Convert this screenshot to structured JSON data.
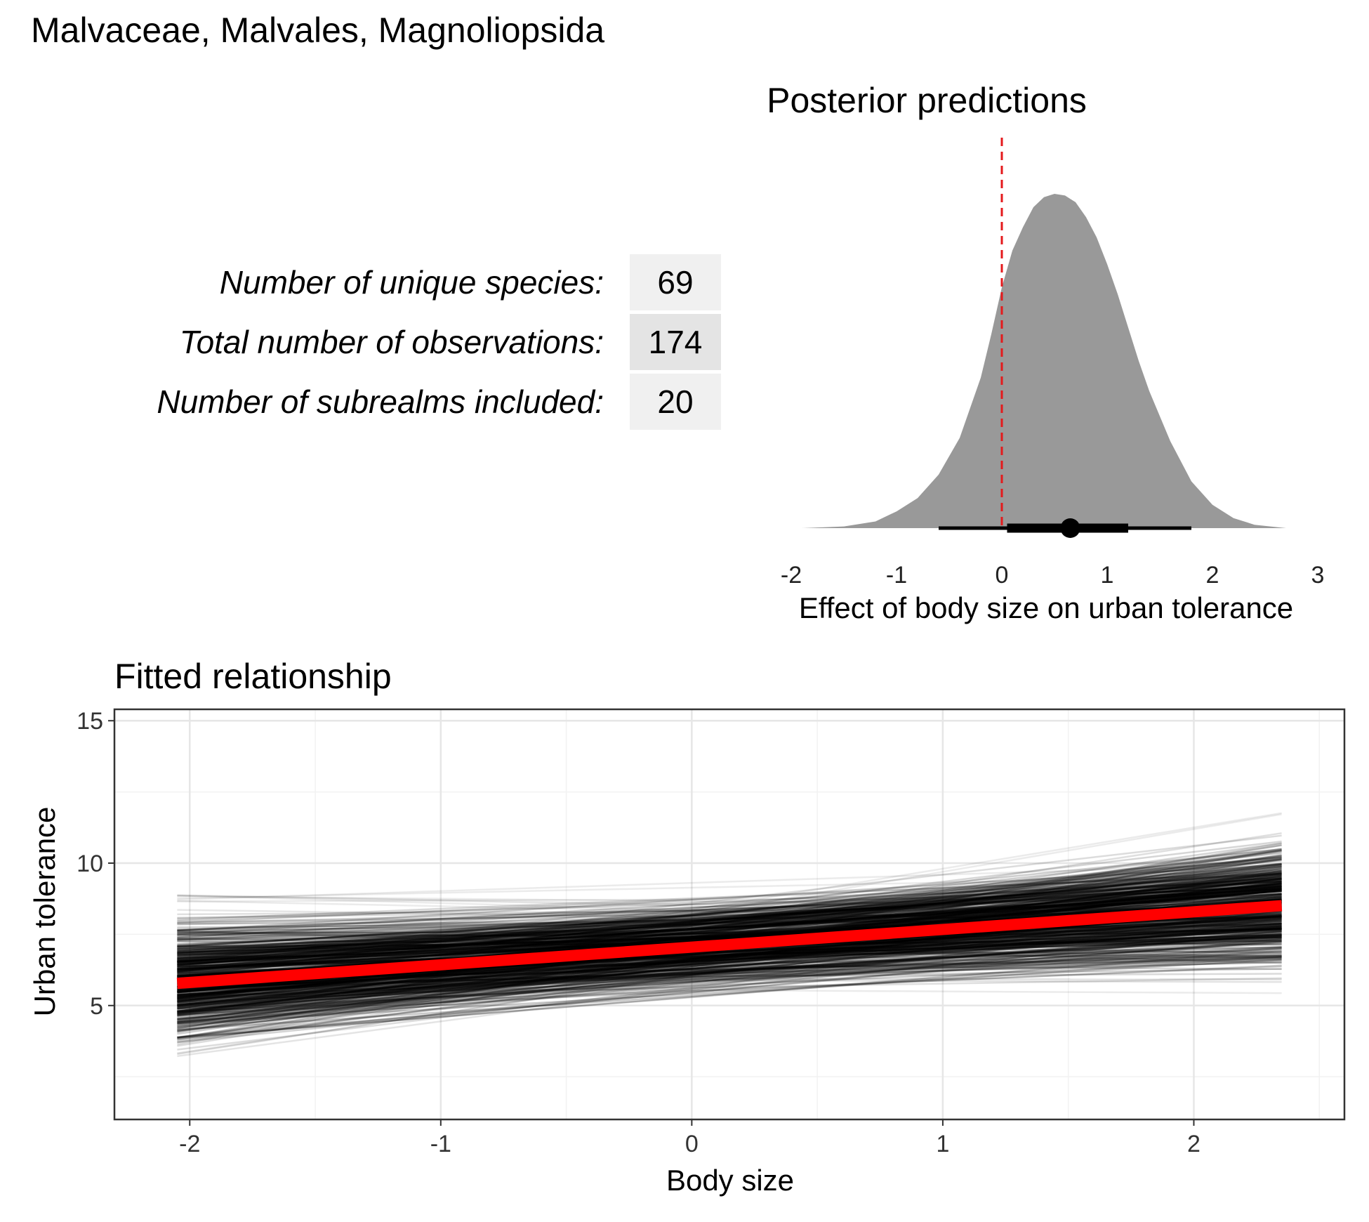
{
  "page": {
    "title": "Malvaceae, Malvales, Magnoliopsida"
  },
  "summary_table": {
    "rows": [
      {
        "label": "Number of unique species:",
        "value": "69"
      },
      {
        "label": "Total number of observations:",
        "value": "174"
      },
      {
        "label": "Number of subrealms included:",
        "value": "20"
      }
    ],
    "cell_colors": [
      "#f0f0f0",
      "#e4e4e4",
      "#f0f0f0"
    ]
  },
  "chart_data": [
    {
      "type": "area",
      "title": "Posterior predictions",
      "xlabel": "Effect of body size on urban tolerance",
      "ylabel": "",
      "xlim": [
        -2,
        3
      ],
      "xticks": [
        "-2",
        "-1",
        "0",
        "1",
        "2",
        "3"
      ],
      "grid": false,
      "density_color": "#999999",
      "reference_line": {
        "x": 0,
        "color": "#e41a1c",
        "style": "dashed"
      },
      "density": {
        "x": [
          -1.9,
          -1.5,
          -1.2,
          -1.0,
          -0.8,
          -0.6,
          -0.4,
          -0.2,
          -0.1,
          0.0,
          0.1,
          0.2,
          0.3,
          0.4,
          0.5,
          0.6,
          0.7,
          0.8,
          0.9,
          1.0,
          1.1,
          1.2,
          1.3,
          1.4,
          1.6,
          1.8,
          2.0,
          2.2,
          2.4,
          2.7
        ],
        "y": [
          0.0,
          0.005,
          0.02,
          0.05,
          0.09,
          0.16,
          0.27,
          0.45,
          0.58,
          0.72,
          0.83,
          0.9,
          0.96,
          0.99,
          1.0,
          0.995,
          0.975,
          0.93,
          0.87,
          0.79,
          0.7,
          0.6,
          0.5,
          0.41,
          0.26,
          0.14,
          0.07,
          0.03,
          0.01,
          0.0
        ]
      },
      "point_interval": {
        "median": 0.65,
        "inner": [
          0.05,
          1.2
        ],
        "outer": [
          -0.6,
          1.8
        ]
      }
    },
    {
      "type": "line",
      "title": "Fitted relationship",
      "xlabel": "Body size",
      "ylabel": "Urban tolerance",
      "xlim": [
        -2.3,
        2.6
      ],
      "ylim": [
        1.0,
        15.4
      ],
      "xticks": [
        "-2",
        "-1",
        "0",
        "1",
        "2"
      ],
      "yticks": [
        "5",
        "10",
        "15"
      ],
      "grid": true,
      "x_range": [
        -2.05,
        2.35
      ],
      "fit": {
        "intercept": 7.05,
        "slope": 0.62,
        "color": "#ff0000"
      },
      "posterior_draws": {
        "color": "#000000",
        "intercept_range": [
          4.6,
          9.5
        ],
        "slope_range": [
          -0.35,
          1.7
        ]
      }
    }
  ]
}
